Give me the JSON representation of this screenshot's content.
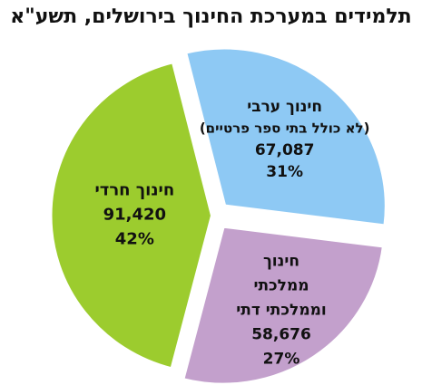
{
  "chart_data": {
    "type": "pie",
    "title": "תלמידים במערכת החינוך בירושלים, תשע\"א",
    "slices": [
      {
        "label_lines": [
          "חינוך ערבי",
          "(לא כולל בתי ספר פרטיים)"
        ],
        "value": 67087,
        "value_text": "67,087",
        "percent": 31,
        "percent_text": "31%",
        "color": "#8ec9f4"
      },
      {
        "label_lines": [
          "חינוך",
          "ממלכתי",
          "וממלכתי דתי"
        ],
        "value": 58676,
        "value_text": "58,676",
        "percent": 27,
        "percent_text": "27%",
        "color": "#c3a0cc"
      },
      {
        "label_lines": [
          "חינוך חרדי"
        ],
        "value": 91420,
        "value_text": "91,420",
        "percent": 42,
        "percent_text": "42%",
        "color": "#9ccc2e"
      }
    ]
  }
}
